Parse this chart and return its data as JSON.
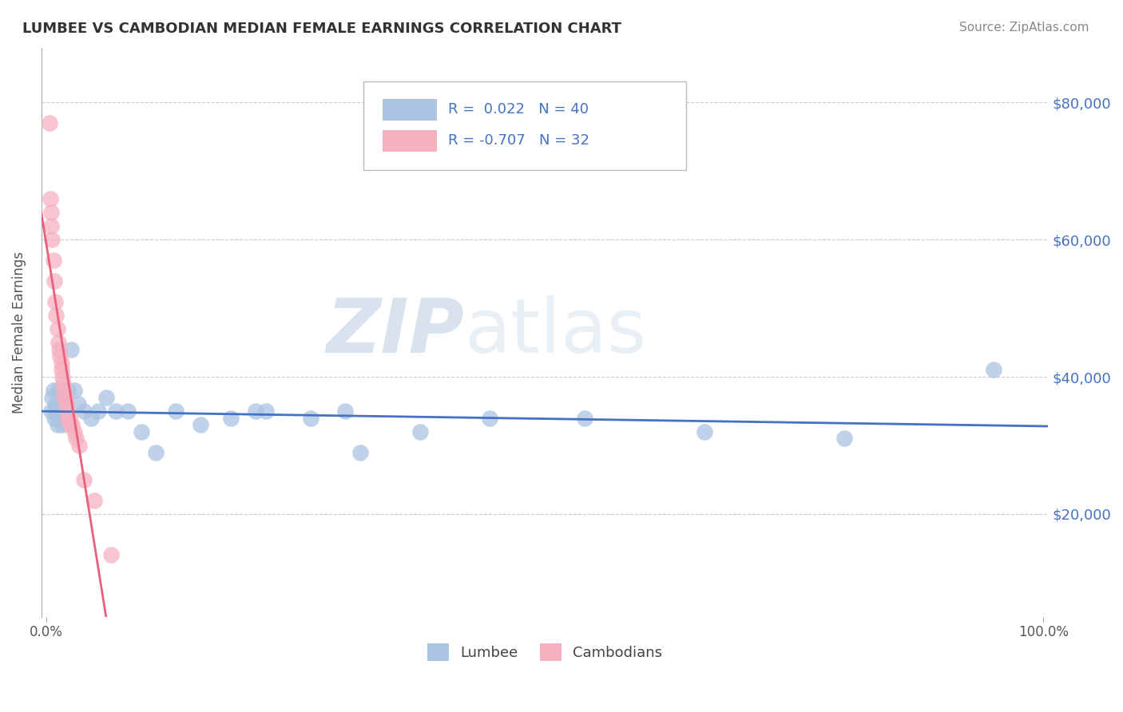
{
  "title": "LUMBEE VS CAMBODIAN MEDIAN FEMALE EARNINGS CORRELATION CHART",
  "source": "Source: ZipAtlas.com",
  "ylabel": "Median Female Earnings",
  "ylim": [
    5000,
    88000
  ],
  "xlim": [
    -0.005,
    1.005
  ],
  "watermark_zip": "ZIP",
  "watermark_atlas": "atlas",
  "lumbee_R": "0.022",
  "lumbee_N": "40",
  "cambodian_R": "-0.707",
  "cambodian_N": "32",
  "lumbee_color": "#aac4e2",
  "cambodian_color": "#f5b0c0",
  "lumbee_line_color": "#4472c4",
  "cambodian_line_color": "#e8607a",
  "lumbee_x": [
    0.005,
    0.006,
    0.007,
    0.008,
    0.009,
    0.01,
    0.011,
    0.012,
    0.013,
    0.014,
    0.015,
    0.016,
    0.018,
    0.02,
    0.022,
    0.025,
    0.028,
    0.032,
    0.038,
    0.045,
    0.052,
    0.06,
    0.07,
    0.082,
    0.095,
    0.11,
    0.13,
    0.155,
    0.185,
    0.22,
    0.265,
    0.315,
    0.375,
    0.445,
    0.54,
    0.66,
    0.8,
    0.21,
    0.3,
    0.95
  ],
  "lumbee_y": [
    35000,
    37000,
    38000,
    34000,
    35000,
    36000,
    33000,
    38000,
    36000,
    35000,
    37000,
    33000,
    34000,
    36000,
    38000,
    44000,
    38000,
    36000,
    35000,
    34000,
    35000,
    37000,
    35000,
    35000,
    32000,
    29000,
    35000,
    33000,
    34000,
    35000,
    34000,
    29000,
    32000,
    34000,
    34000,
    32000,
    31000,
    35000,
    35000,
    41000
  ],
  "cambodian_x": [
    0.003,
    0.004,
    0.005,
    0.005,
    0.006,
    0.007,
    0.008,
    0.009,
    0.01,
    0.011,
    0.012,
    0.013,
    0.014,
    0.015,
    0.015,
    0.016,
    0.017,
    0.018,
    0.018,
    0.019,
    0.02,
    0.021,
    0.022,
    0.023,
    0.024,
    0.026,
    0.028,
    0.03,
    0.033,
    0.038,
    0.048,
    0.065
  ],
  "cambodian_y": [
    77000,
    66000,
    64000,
    62000,
    60000,
    57000,
    54000,
    51000,
    49000,
    47000,
    45000,
    44000,
    43000,
    42000,
    41000,
    40000,
    39000,
    38000,
    37000,
    37000,
    36000,
    35000,
    34000,
    34000,
    33000,
    33000,
    32000,
    31000,
    30000,
    25000,
    22000,
    14000
  ],
  "y_ticks": [
    20000,
    40000,
    60000,
    80000
  ],
  "y_tick_labels": [
    "$20,000",
    "$40,000",
    "$60,000",
    "$80,000"
  ],
  "background_color": "#ffffff",
  "grid_color": "#cccccc",
  "title_color": "#333333",
  "source_color": "#888888",
  "axis_color": "#555555"
}
